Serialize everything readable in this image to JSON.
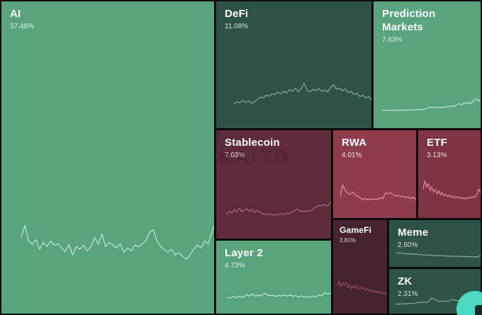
{
  "watermark": "KAITO",
  "logo": {
    "name": "kaito-logo",
    "color": "#4dd8c6",
    "mark_color": "#0d2d26"
  },
  "chart_data": {
    "type": "treemap",
    "title": "",
    "value_unit": "%",
    "categories": [
      "AI",
      "DeFi",
      "Prediction Markets",
      "Stablecoin",
      "RWA",
      "ETF",
      "GameFi",
      "Meme",
      "ZK",
      "Layer 2"
    ],
    "values": [
      37.48,
      11.08,
      7.63,
      7.03,
      4.01,
      3.13,
      2.81,
      2.6,
      2.31,
      4.73
    ],
    "palette": {
      "green": "#58a57d",
      "dark_green": "#2c5345",
      "maroon": "#5e2c39",
      "dark_maroon": "#46232e",
      "red": "#8e3c4b",
      "red_dark": "#7f3444"
    },
    "series": [
      {
        "id": "ai",
        "label": "AI",
        "value": "37.48%",
        "bg": "#58a57d",
        "spark_color": "#bfe7d1",
        "spark": [
          0.55,
          0.72,
          0.5,
          0.45,
          0.52,
          0.38,
          0.48,
          0.42,
          0.5,
          0.44,
          0.46,
          0.4,
          0.35,
          0.45,
          0.3,
          0.42,
          0.38,
          0.44,
          0.36,
          0.42,
          0.55,
          0.45,
          0.6,
          0.42,
          0.48,
          0.44,
          0.4,
          0.46,
          0.34,
          0.4,
          0.36,
          0.44,
          0.42,
          0.46,
          0.5,
          0.62,
          0.66,
          0.5,
          0.42,
          0.38,
          0.34,
          0.38,
          0.3,
          0.34,
          0.28,
          0.24,
          0.3,
          0.38,
          0.44,
          0.4,
          0.5,
          0.46,
          0.62,
          0.78,
          0.7,
          0.98,
          0.82,
          0.88,
          0.72
        ]
      },
      {
        "id": "defi",
        "label": "DeFi",
        "value": "11.08%",
        "bg": "#2c5345",
        "spark_color": "#84ad99",
        "spark": [
          0.22,
          0.28,
          0.25,
          0.32,
          0.26,
          0.3,
          0.24,
          0.28,
          0.35,
          0.42,
          0.4,
          0.48,
          0.45,
          0.52,
          0.5,
          0.58,
          0.52,
          0.6,
          0.55,
          0.65,
          0.6,
          0.7,
          0.58,
          0.68,
          0.85,
          0.62,
          0.58,
          0.66,
          0.62,
          0.68,
          0.6,
          0.64,
          0.58,
          0.72,
          0.8,
          0.66,
          0.7,
          0.62,
          0.68,
          0.56,
          0.6,
          0.5,
          0.54,
          0.44,
          0.48,
          0.4,
          0.44,
          0.34,
          0.38,
          0.28,
          0.32,
          0.22,
          0.2,
          0.42
        ]
      },
      {
        "id": "prediction-markets",
        "label": "Prediction Markets",
        "value": "7.63%",
        "bg": "#58a57d",
        "spark_color": "#bfe7d1",
        "spark": [
          0.08,
          0.08,
          0.08,
          0.08,
          0.08,
          0.08,
          0.08,
          0.08,
          0.09,
          0.08,
          0.09,
          0.08,
          0.09,
          0.1,
          0.09,
          0.1,
          0.1,
          0.11,
          0.1,
          0.12,
          0.15,
          0.18,
          0.15,
          0.16,
          0.18,
          0.16,
          0.17,
          0.16,
          0.18,
          0.2,
          0.18,
          0.22,
          0.2,
          0.24,
          0.28,
          0.24,
          0.3,
          0.26,
          0.32,
          0.28,
          0.35,
          0.42,
          0.38,
          0.35,
          0.4,
          1.0,
          0.38,
          0.45
        ]
      },
      {
        "id": "stablecoin",
        "label": "Stablecoin",
        "value": "7.03%",
        "bg": "#5e2c39",
        "spark_color": "#aa6a7c",
        "spark": [
          0.3,
          0.42,
          0.35,
          0.48,
          0.38,
          0.52,
          0.4,
          0.45,
          0.5,
          0.42,
          0.48,
          0.38,
          0.44,
          0.4,
          0.35,
          0.3,
          0.34,
          0.3,
          0.32,
          0.28,
          0.32,
          0.3,
          0.34,
          0.3,
          0.36,
          0.32,
          0.38,
          0.42,
          0.5,
          0.44,
          0.4,
          0.44,
          0.4,
          0.46,
          0.42,
          0.52,
          0.58,
          0.62,
          0.6,
          0.66,
          0.6,
          0.64,
          0.78,
          0.56,
          0.72,
          0.5,
          0.62
        ]
      },
      {
        "id": "rwa",
        "label": "RWA",
        "value": "4.01%",
        "bg": "#8e3c4b",
        "spark_color": "#e490a1",
        "spark": [
          0.25,
          0.6,
          0.42,
          0.35,
          0.3,
          0.38,
          0.28,
          0.25,
          0.2,
          0.15,
          0.18,
          0.14,
          0.16,
          0.15,
          0.17,
          0.15,
          0.2,
          0.18,
          0.35,
          0.32,
          0.36,
          0.3,
          0.25,
          0.28,
          0.22,
          0.26,
          0.2,
          0.24,
          0.18,
          0.22,
          0.16,
          0.2,
          0.25,
          0.3
        ]
      },
      {
        "id": "etf",
        "label": "ETF",
        "value": "3.13%",
        "bg": "#7f3444",
        "spark_color": "#e0849a",
        "spark": [
          0.45,
          0.7,
          0.5,
          0.62,
          0.4,
          0.52,
          0.35,
          0.45,
          0.3,
          0.4,
          0.28,
          0.35,
          0.25,
          0.3,
          0.22,
          0.28,
          0.2,
          0.25,
          0.18,
          0.24,
          0.18,
          0.22,
          0.16,
          0.2,
          0.15,
          0.2,
          0.16,
          0.22,
          0.18,
          0.25,
          0.2,
          0.3,
          0.45,
          0.35,
          0.55,
          0.4,
          0.5
        ]
      },
      {
        "id": "gamefi",
        "label": "GameFi",
        "value": "2.81%",
        "bg": "#46232e",
        "spark_color": "#914c60",
        "spark": [
          0.5,
          0.65,
          0.45,
          0.58,
          0.5,
          0.6,
          0.42,
          0.52,
          0.38,
          0.48,
          0.42,
          0.5,
          0.36,
          0.44,
          0.38,
          0.42,
          0.32,
          0.4,
          0.3,
          0.36,
          0.28,
          0.34,
          0.26,
          0.3,
          0.22,
          0.28,
          0.2,
          0.26,
          0.18,
          0.24,
          0.2,
          0.25
        ]
      },
      {
        "id": "meme",
        "label": "Meme",
        "value": "2.60%",
        "bg": "#2c5345",
        "spark_color": "#84ad99",
        "spark": [
          0.62,
          0.55,
          0.58,
          0.5,
          0.54,
          0.48,
          0.52,
          0.46,
          0.5,
          0.44,
          0.48,
          0.42,
          0.44,
          0.4,
          0.42,
          0.38,
          0.4,
          0.36,
          0.38,
          0.35,
          0.36,
          0.34,
          0.35,
          0.33,
          0.34,
          0.32,
          0.33,
          0.3,
          0.32,
          0.3,
          0.3,
          0.28,
          0.3,
          0.28,
          0.42,
          0.35,
          0.3,
          0.25
        ]
      },
      {
        "id": "zk",
        "label": "ZK",
        "value": "2.31%",
        "bg": "#2c5345",
        "spark_color": "#84ad99",
        "spark": [
          0.18,
          0.2,
          0.19,
          0.22,
          0.2,
          0.24,
          0.22,
          0.26,
          0.3,
          0.28,
          0.34,
          0.3,
          0.38,
          0.65,
          0.5,
          0.42,
          0.38,
          0.42,
          0.36,
          0.4,
          0.5,
          0.46,
          0.42,
          0.46,
          0.4,
          0.44,
          0.38,
          0.4,
          0.34,
          0.3,
          0.26,
          0.22,
          0.2
        ]
      },
      {
        "id": "layer2",
        "label": "Layer 2",
        "value": "4.73%",
        "bg": "#58a57d",
        "spark_color": "#bfe7d1",
        "spark": [
          0.25,
          0.2,
          0.28,
          0.22,
          0.3,
          0.24,
          0.28,
          0.35,
          0.3,
          0.38,
          0.28,
          0.34,
          0.3,
          0.42,
          0.35,
          0.3,
          0.34,
          0.28,
          0.32,
          0.3,
          0.34,
          0.3,
          0.35,
          0.28,
          0.32,
          0.26,
          0.3,
          0.24,
          0.28,
          0.24,
          0.3,
          0.26,
          0.35,
          0.3,
          0.44,
          0.38,
          0.42,
          0.35,
          0.3,
          0.85,
          0.55
        ]
      }
    ]
  }
}
